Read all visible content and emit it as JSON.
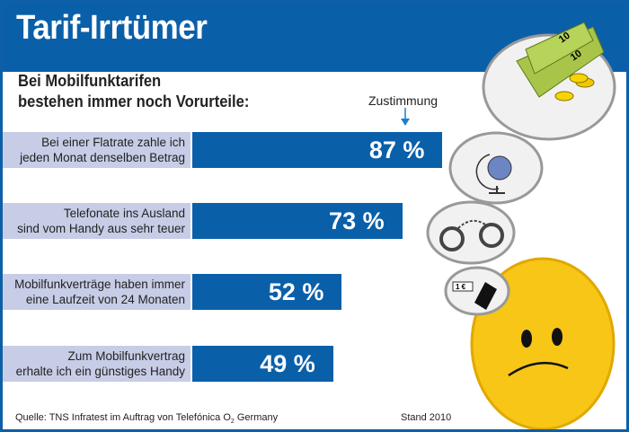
{
  "title": "Tarif-Irrtümer",
  "subtitle": [
    "Bei Mobilfunktarifen",
    "bestehen immer noch Vorurteile:"
  ],
  "column_label": "Zustimmung",
  "chart_data": {
    "type": "bar",
    "orientation": "horizontal",
    "title": "Tarif-Irrtümer",
    "categories": [
      [
        "Bei einer Flatrate zahle ich",
        "jeden Monat denselben Betrag"
      ],
      [
        "Telefonate ins Ausland",
        "sind vom Handy aus sehr teuer"
      ],
      [
        "Mobilfunkverträge haben immer",
        "eine Laufzeit von 24 Monaten"
      ],
      [
        "Zum Mobilfunkvertrag",
        "erhalte ich ein günstiges Handy"
      ]
    ],
    "values": [
      87,
      73,
      52,
      49
    ],
    "value_labels": [
      "87 %",
      "73 %",
      "52 %",
      "49 %"
    ],
    "unit": "%",
    "xlabel": "Zustimmung"
  },
  "source": {
    "prefix": "Quelle: TNS Infratest im Auftrag von Telefónica O",
    "sub": "2",
    "suffix": " Germany"
  },
  "stand": "Stand 2010",
  "icon_text": {
    "note1": "10",
    "note2": "10",
    "price": "1 €"
  },
  "colors": {
    "blue": "#0a5fa9",
    "label_bg": "#c7cde6",
    "smiley": "#f7c616"
  }
}
